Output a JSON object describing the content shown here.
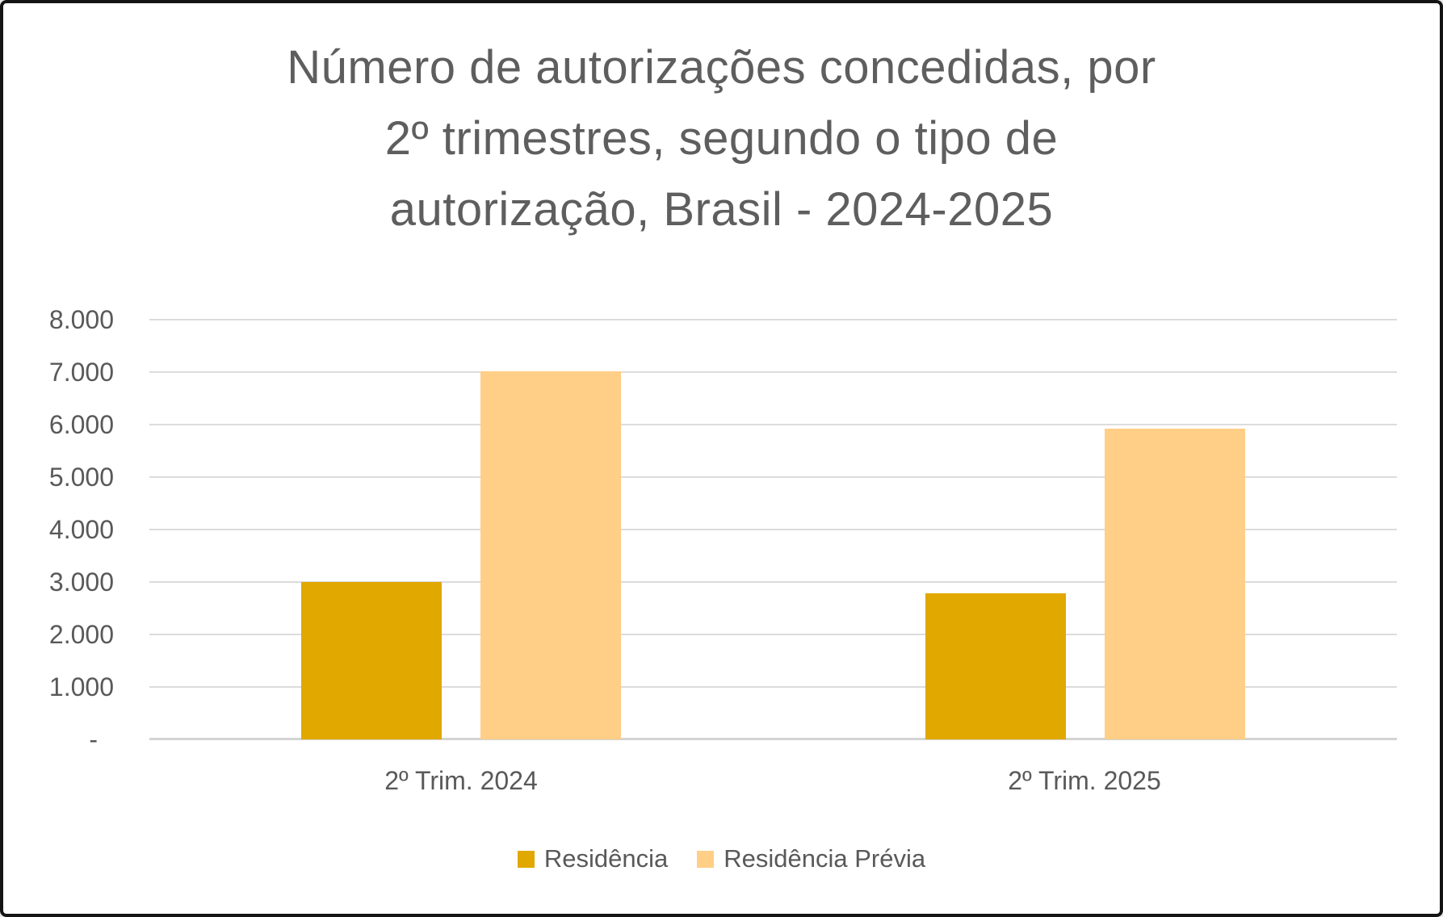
{
  "chart_data": {
    "type": "bar",
    "title": "Número de autorizações concedidas, por 2º trimestres, segundo o tipo de autorização, Brasil - 2024-2025",
    "title_lines": [
      "Número de autorizações concedidas, por",
      "2º trimestres, segundo o tipo de",
      "autorização, Brasil - 2024-2025"
    ],
    "categories": [
      "2º Trim. 2024",
      "2º Trim. 2025"
    ],
    "series": [
      {
        "name": "Residência",
        "color": "#E1A800",
        "values": [
          3000,
          2790
        ]
      },
      {
        "name": "Residência Prévia",
        "color": "#FFCE87",
        "values": [
          7020,
          5930
        ]
      }
    ],
    "xlabel": "",
    "ylabel": "",
    "ylim": [
      0,
      8000
    ],
    "ytick_interval": 1000,
    "ytick_labels_bottom_to_top": [
      "-",
      "1.000",
      "2.000",
      "3.000",
      "4.000",
      "5.000",
      "6.000",
      "7.000",
      "8.000"
    ],
    "grid": true,
    "legend_position": "bottom",
    "colors": {
      "background": "#FFFFFF",
      "frame_border": "#141414",
      "title_text": "#5E5E5E",
      "axis_text": "#595959",
      "gridline": "#DCDCDC",
      "axis_line": "#D4D4D4"
    }
  }
}
